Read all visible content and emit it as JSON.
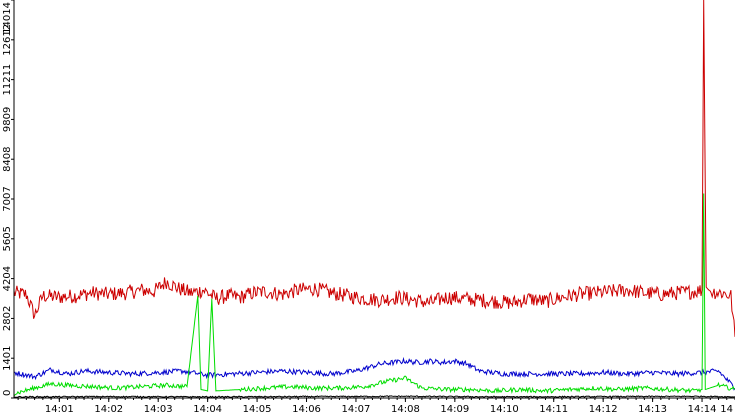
{
  "chart_data": {
    "type": "line",
    "title": "",
    "xlabel": "",
    "ylabel": "",
    "ylim": [
      0,
      14014
    ],
    "y_ticks": [
      0,
      1401,
      2802,
      4204,
      5605,
      7007,
      8408,
      9809,
      11211,
      12612,
      14014
    ],
    "y_tick_labels": [
      "0",
      "1401",
      "2802",
      "4204",
      "5605",
      "7007",
      "8408",
      "9809",
      "11211",
      "12612",
      "14014"
    ],
    "x_tick_labels": [
      "14:01",
      "14:02",
      "14:03",
      "14:04",
      "14:05",
      "14:06",
      "14:07",
      "14:08",
      "14:09",
      "14:10",
      "14:11",
      "14:12",
      "14:13",
      "14:14",
      "14"
    ],
    "x_range_minutes": [
      "14:00:05",
      "14:14:40"
    ],
    "grid": false,
    "legend": "none",
    "series": [
      {
        "color": "#cc0000",
        "points": [
          [
            "14:00:05",
            3700
          ],
          [
            "14:00:20",
            3650
          ],
          [
            "14:00:30",
            2900
          ],
          [
            "14:00:40",
            3600
          ],
          [
            "14:01:00",
            3550
          ],
          [
            "14:01:20",
            3600
          ],
          [
            "14:01:40",
            3700
          ],
          [
            "14:02:00",
            3650
          ],
          [
            "14:02:20",
            3700
          ],
          [
            "14:02:40",
            3800
          ],
          [
            "14:02:55",
            3750
          ],
          [
            "14:03:10",
            4100
          ],
          [
            "14:03:25",
            3850
          ],
          [
            "14:03:40",
            3700
          ],
          [
            "14:03:55",
            3800
          ],
          [
            "14:04:10",
            3500
          ],
          [
            "14:04:25",
            3600
          ],
          [
            "14:04:40",
            3550
          ],
          [
            "14:04:55",
            3700
          ],
          [
            "14:05:10",
            3750
          ],
          [
            "14:05:30",
            3650
          ],
          [
            "14:05:50",
            3800
          ],
          [
            "14:06:10",
            3850
          ],
          [
            "14:06:30",
            3700
          ],
          [
            "14:06:50",
            3600
          ],
          [
            "14:07:10",
            3500
          ],
          [
            "14:07:30",
            3450
          ],
          [
            "14:07:50",
            3550
          ],
          [
            "14:08:10",
            3450
          ],
          [
            "14:08:30",
            3350
          ],
          [
            "14:08:50",
            3550
          ],
          [
            "14:09:10",
            3500
          ],
          [
            "14:09:30",
            3450
          ],
          [
            "14:09:50",
            3400
          ],
          [
            "14:10:10",
            3350
          ],
          [
            "14:10:30",
            3500
          ],
          [
            "14:10:50",
            3400
          ],
          [
            "14:11:10",
            3550
          ],
          [
            "14:11:30",
            3650
          ],
          [
            "14:11:50",
            3700
          ],
          [
            "14:12:10",
            3750
          ],
          [
            "14:12:30",
            3800
          ],
          [
            "14:12:50",
            3700
          ],
          [
            "14:13:10",
            3650
          ],
          [
            "14:13:30",
            3700
          ],
          [
            "14:13:50",
            3750
          ],
          [
            "14:14:00",
            3800
          ],
          [
            "14:14:02",
            14014
          ],
          [
            "14:14:05",
            3900
          ],
          [
            "14:14:10",
            3750
          ],
          [
            "14:14:25",
            3700
          ],
          [
            "14:14:35",
            3600
          ],
          [
            "14:14:40",
            2150
          ]
        ]
      },
      {
        "color": "#0000cc",
        "points": [
          [
            "14:00:05",
            900
          ],
          [
            "14:00:30",
            750
          ],
          [
            "14:00:50",
            1000
          ],
          [
            "14:01:10",
            850
          ],
          [
            "14:01:30",
            950
          ],
          [
            "14:02:00",
            900
          ],
          [
            "14:02:30",
            850
          ],
          [
            "14:03:00",
            900
          ],
          [
            "14:03:30",
            950
          ],
          [
            "14:04:00",
            800
          ],
          [
            "14:04:30",
            850
          ],
          [
            "14:05:00",
            900
          ],
          [
            "14:05:30",
            950
          ],
          [
            "14:06:00",
            900
          ],
          [
            "14:06:30",
            850
          ],
          [
            "14:07:00",
            950
          ],
          [
            "14:07:30",
            1200
          ],
          [
            "14:07:45",
            1250
          ],
          [
            "14:08:00",
            1300
          ],
          [
            "14:08:15",
            1250
          ],
          [
            "14:08:30",
            1300
          ],
          [
            "14:08:45",
            1250
          ],
          [
            "14:09:00",
            1300
          ],
          [
            "14:09:15",
            1200
          ],
          [
            "14:09:30",
            950
          ],
          [
            "14:10:00",
            850
          ],
          [
            "14:10:30",
            850
          ],
          [
            "14:11:00",
            850
          ],
          [
            "14:11:30",
            850
          ],
          [
            "14:12:00",
            900
          ],
          [
            "14:12:30",
            850
          ],
          [
            "14:13:00",
            900
          ],
          [
            "14:13:30",
            850
          ],
          [
            "14:14:00",
            900
          ],
          [
            "14:14:20",
            950
          ],
          [
            "14:14:40",
            350
          ]
        ]
      },
      {
        "color": "#00dd00",
        "points": [
          [
            "14:00:05",
            150
          ],
          [
            "14:00:30",
            350
          ],
          [
            "14:00:50",
            500
          ],
          [
            "14:01:10",
            450
          ],
          [
            "14:01:40",
            400
          ],
          [
            "14:02:10",
            350
          ],
          [
            "14:02:40",
            400
          ],
          [
            "14:03:10",
            450
          ],
          [
            "14:03:35",
            400
          ],
          [
            "14:03:48",
            3600
          ],
          [
            "14:03:52",
            300
          ],
          [
            "14:04:00",
            250
          ],
          [
            "14:04:05",
            3500
          ],
          [
            "14:04:10",
            250
          ],
          [
            "14:04:40",
            300
          ],
          [
            "14:05:10",
            350
          ],
          [
            "14:05:40",
            400
          ],
          [
            "14:06:10",
            350
          ],
          [
            "14:06:40",
            350
          ],
          [
            "14:07:10",
            400
          ],
          [
            "14:07:40",
            600
          ],
          [
            "14:08:00",
            700
          ],
          [
            "14:08:20",
            350
          ],
          [
            "14:08:50",
            300
          ],
          [
            "14:09:20",
            300
          ],
          [
            "14:09:50",
            250
          ],
          [
            "14:10:20",
            300
          ],
          [
            "14:10:50",
            250
          ],
          [
            "14:11:20",
            300
          ],
          [
            "14:11:50",
            350
          ],
          [
            "14:12:20",
            300
          ],
          [
            "14:12:50",
            350
          ],
          [
            "14:13:20",
            300
          ],
          [
            "14:13:50",
            250
          ],
          [
            "14:14:00",
            300
          ],
          [
            "14:14:02",
            7200
          ],
          [
            "14:14:04",
            300
          ],
          [
            "14:14:20",
            450
          ],
          [
            "14:14:40",
            300
          ]
        ]
      },
      {
        "color": "#000000",
        "points": [
          [
            "14:00:05",
            40
          ],
          [
            "14:02:00",
            50
          ],
          [
            "14:04:00",
            40
          ],
          [
            "14:06:00",
            50
          ],
          [
            "14:08:00",
            60
          ],
          [
            "14:10:00",
            40
          ],
          [
            "14:12:00",
            50
          ],
          [
            "14:14:00",
            60
          ],
          [
            "14:14:40",
            40
          ]
        ]
      }
    ]
  }
}
